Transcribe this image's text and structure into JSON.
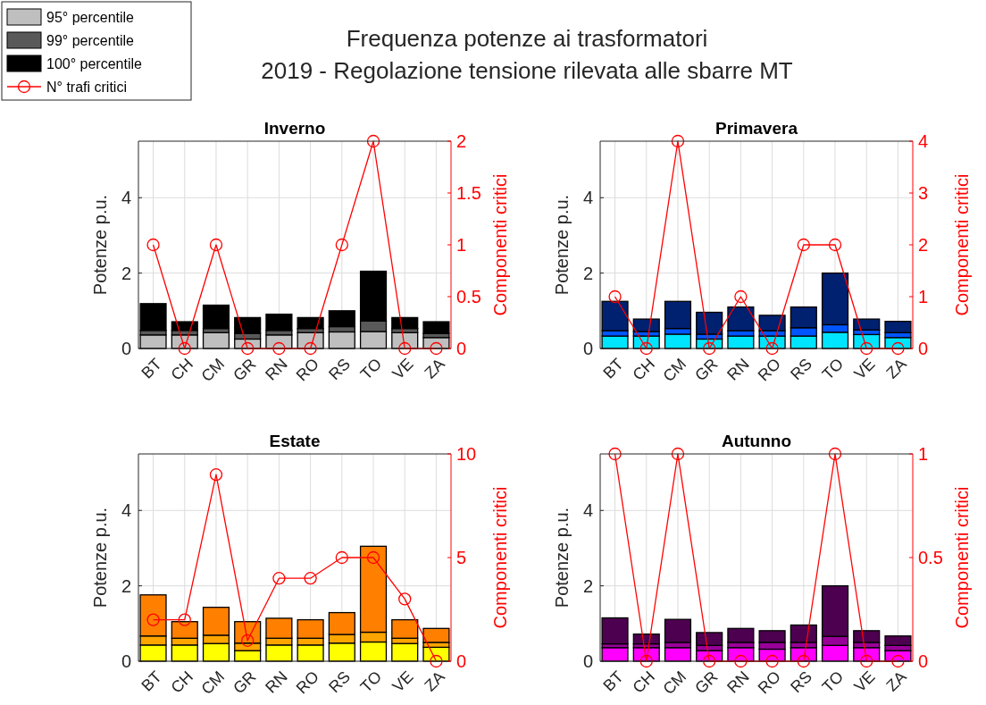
{
  "chart_data": [
    {
      "type": "bar",
      "stacked": true,
      "title": "Inverno",
      "annotations": [
        "Frequenza potenze ai trasformatori",
        "2019 - Regolazione tensione rilevata alle sbarre MT"
      ],
      "legend": "top left",
      "grid": true,
      "ylabel": "Potenze p.u.",
      "y2label": "Componenti critici",
      "categories": [
        "BT",
        "CH",
        "CM",
        "GR",
        "RN",
        "RO",
        "RS",
        "TO",
        "VE",
        "ZA"
      ],
      "ylim": [
        0,
        5.5
      ],
      "yticks": [
        0,
        2,
        4
      ],
      "y2lim": [
        0,
        2
      ],
      "y2ticks": [
        0,
        0.5,
        1,
        1.5,
        2
      ],
      "series": [
        {
          "name": "95° percentile",
          "color": "#bfbfbf",
          "values": [
            0.36,
            0.36,
            0.42,
            0.25,
            0.36,
            0.42,
            0.44,
            0.45,
            0.42,
            0.29
          ]
        },
        {
          "name": "99° percentile",
          "color": "#595959",
          "values": [
            0.12,
            0.12,
            0.11,
            0.15,
            0.12,
            0.11,
            0.14,
            0.28,
            0.11,
            0.11
          ]
        },
        {
          "name": "100° percentile",
          "color": "#000000",
          "values": [
            0.71,
            0.23,
            0.62,
            0.42,
            0.43,
            0.29,
            0.42,
            1.32,
            0.29,
            0.31
          ]
        },
        {
          "name": "N° trafi critici",
          "type": "line",
          "axis": "y2",
          "marker": "circle",
          "line_style": "solid",
          "color": "#ff0000",
          "values": [
            1,
            0,
            1,
            0,
            0,
            0,
            1,
            2,
            0,
            0
          ]
        }
      ]
    },
    {
      "type": "bar",
      "stacked": true,
      "title": "Primavera",
      "grid": true,
      "ylabel": "Potenze p.u.",
      "y2label": "Componenti critici",
      "categories": [
        "BT",
        "CH",
        "CM",
        "GR",
        "RN",
        "RO",
        "RS",
        "TO",
        "VE",
        "ZA"
      ],
      "ylim": [
        0,
        5.5
      ],
      "yticks": [
        0,
        2,
        4
      ],
      "y2lim": [
        0,
        4
      ],
      "y2ticks": [
        0,
        1,
        2,
        3,
        4
      ],
      "series": [
        {
          "color": "#00e5ff",
          "values": [
            0.33,
            0.33,
            0.38,
            0.25,
            0.33,
            0.33,
            0.33,
            0.43,
            0.37,
            0.29
          ]
        },
        {
          "color": "#0055ff",
          "values": [
            0.14,
            0.12,
            0.15,
            0.13,
            0.14,
            0.14,
            0.22,
            0.2,
            0.12,
            0.13
          ]
        },
        {
          "color": "#002070",
          "values": [
            0.78,
            0.33,
            0.72,
            0.58,
            0.63,
            0.41,
            0.55,
            1.37,
            0.29,
            0.3
          ]
        },
        {
          "type": "line",
          "axis": "y2",
          "marker": "circle",
          "line_style": "solid",
          "color": "#ff0000",
          "values": [
            1,
            0,
            4,
            0,
            1,
            0,
            2,
            2,
            0,
            0
          ]
        }
      ]
    },
    {
      "type": "bar",
      "stacked": true,
      "title": "Estate",
      "grid": true,
      "ylabel": "Potenze p.u.",
      "y2label": "Componenti critici",
      "categories": [
        "BT",
        "CH",
        "CM",
        "GR",
        "RN",
        "RO",
        "RS",
        "TO",
        "VE",
        "ZA"
      ],
      "ylim": [
        0,
        5.5
      ],
      "yticks": [
        0,
        2,
        4
      ],
      "y2lim": [
        0,
        10
      ],
      "y2ticks": [
        0,
        5,
        10
      ],
      "series": [
        {
          "color": "#ffff00",
          "values": [
            0.43,
            0.43,
            0.47,
            0.28,
            0.43,
            0.43,
            0.48,
            0.51,
            0.47,
            0.37
          ]
        },
        {
          "color": "#ffa500",
          "values": [
            0.24,
            0.18,
            0.22,
            0.2,
            0.18,
            0.18,
            0.23,
            0.26,
            0.14,
            0.13
          ]
        },
        {
          "color": "#ff8000",
          "values": [
            1.09,
            0.44,
            0.74,
            0.57,
            0.53,
            0.49,
            0.58,
            2.28,
            0.49,
            0.37
          ]
        },
        {
          "type": "line",
          "axis": "y2",
          "marker": "circle",
          "line_style": "solid",
          "color": "#ff0000",
          "values": [
            2,
            2,
            9,
            1,
            4,
            4,
            5,
            5,
            3,
            0
          ]
        }
      ]
    },
    {
      "type": "bar",
      "stacked": true,
      "title": "Autunno",
      "grid": true,
      "ylabel": "Potenze p.u.",
      "y2label": "Componenti critici",
      "categories": [
        "BT",
        "CH",
        "CM",
        "GR",
        "RN",
        "RO",
        "RS",
        "TO",
        "VE",
        "ZA"
      ],
      "ylim": [
        0,
        5.5
      ],
      "yticks": [
        0,
        2,
        4
      ],
      "y2lim": [
        0,
        1
      ],
      "y2ticks": [
        0,
        0.5,
        1
      ],
      "series": [
        {
          "color": "#ff00ff",
          "values": [
            0.36,
            0.36,
            0.36,
            0.28,
            0.36,
            0.32,
            0.36,
            0.42,
            0.36,
            0.28
          ]
        },
        {
          "color": "#990099",
          "values": [
            0.1,
            0.1,
            0.14,
            0.14,
            0.14,
            0.18,
            0.14,
            0.24,
            0.14,
            0.14
          ]
        },
        {
          "color": "#4d0050",
          "values": [
            0.69,
            0.26,
            0.61,
            0.34,
            0.37,
            0.31,
            0.46,
            1.34,
            0.31,
            0.25
          ]
        },
        {
          "type": "line",
          "axis": "y2",
          "marker": "circle",
          "line_style": "solid",
          "color": "#ff0000",
          "values": [
            1,
            0,
            1,
            0,
            0,
            0,
            0,
            1,
            0,
            0
          ]
        }
      ]
    }
  ]
}
